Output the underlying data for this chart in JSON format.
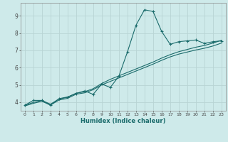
{
  "xlabel": "Humidex (Indice chaleur)",
  "background_color": "#ceeaea",
  "grid_color": "#b8d4d4",
  "line_color": "#1a6b6b",
  "x_ticks": [
    0,
    1,
    2,
    3,
    4,
    5,
    6,
    7,
    8,
    9,
    10,
    11,
    12,
    13,
    14,
    15,
    16,
    17,
    18,
    19,
    20,
    21,
    22,
    23
  ],
  "y_ticks": [
    4,
    5,
    6,
    7,
    8,
    9
  ],
  "xlim": [
    -0.5,
    23.5
  ],
  "ylim": [
    3.5,
    9.75
  ],
  "series1_x": [
    0,
    1,
    2,
    3,
    4,
    5,
    6,
    7,
    8,
    9,
    10,
    11,
    12,
    13,
    14,
    15,
    16,
    17,
    18,
    19,
    20,
    21,
    22,
    23
  ],
  "series1_y": [
    3.82,
    4.1,
    4.1,
    3.82,
    4.2,
    4.3,
    4.5,
    4.65,
    4.45,
    5.05,
    4.85,
    5.5,
    6.9,
    8.45,
    9.35,
    9.25,
    8.1,
    7.35,
    7.5,
    7.55,
    7.6,
    7.4,
    7.5,
    7.55
  ],
  "series2_x": [
    0,
    1,
    2,
    3,
    4,
    5,
    6,
    7,
    8,
    9,
    10,
    11,
    12,
    13,
    14,
    15,
    16,
    17,
    18,
    19,
    20,
    21,
    22,
    23
  ],
  "series2_y": [
    3.82,
    3.98,
    4.1,
    3.88,
    4.18,
    4.28,
    4.52,
    4.6,
    4.78,
    5.08,
    5.32,
    5.52,
    5.72,
    5.92,
    6.12,
    6.32,
    6.55,
    6.75,
    6.92,
    7.05,
    7.18,
    7.28,
    7.42,
    7.58
  ],
  "series3_x": [
    0,
    1,
    2,
    3,
    4,
    5,
    6,
    7,
    8,
    9,
    10,
    11,
    12,
    13,
    14,
    15,
    16,
    17,
    18,
    19,
    20,
    21,
    22,
    23
  ],
  "series3_y": [
    3.78,
    3.93,
    4.05,
    3.83,
    4.12,
    4.22,
    4.46,
    4.54,
    4.72,
    5.0,
    5.2,
    5.4,
    5.6,
    5.8,
    6.0,
    6.2,
    6.42,
    6.62,
    6.78,
    6.9,
    7.02,
    7.12,
    7.25,
    7.42
  ]
}
